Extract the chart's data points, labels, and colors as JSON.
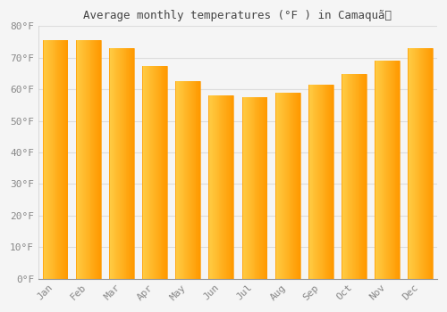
{
  "title": "Average monthly temperatures (°F ) in Camaquã",
  "months": [
    "Jan",
    "Feb",
    "Mar",
    "Apr",
    "May",
    "Jun",
    "Jul",
    "Aug",
    "Sep",
    "Oct",
    "Nov",
    "Dec"
  ],
  "values": [
    75.5,
    75.5,
    73.0,
    67.5,
    62.5,
    58.0,
    57.5,
    59.0,
    61.5,
    65.0,
    69.0,
    73.0
  ],
  "bar_color_left": "#FFB300",
  "bar_color_right": "#FFA000",
  "bar_color_center": "#FFC107",
  "background_color": "#f5f5f5",
  "plot_bg_color": "#f5f5f5",
  "grid_color": "#dddddd",
  "ylim": [
    0,
    80
  ],
  "yticks": [
    0,
    10,
    20,
    30,
    40,
    50,
    60,
    70,
    80
  ],
  "title_fontsize": 9,
  "tick_fontsize": 8,
  "tick_label_color": "#888888",
  "bar_width": 0.75
}
